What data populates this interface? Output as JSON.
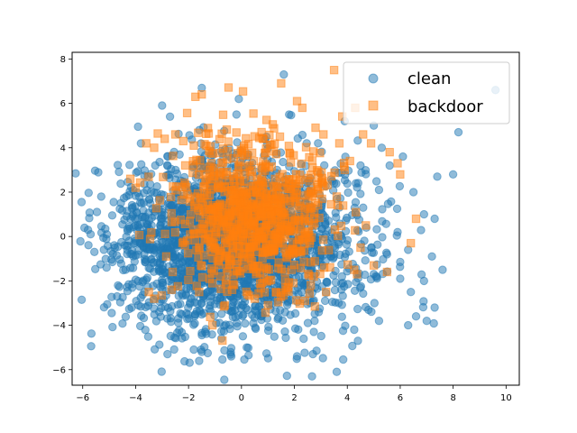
{
  "chart_data": {
    "type": "scatter",
    "title": "",
    "xlabel": "",
    "ylabel": "",
    "xlim": [
      -6.4,
      10.5
    ],
    "ylim": [
      -6.7,
      8.3
    ],
    "xticks": [
      -6,
      -4,
      -2,
      0,
      2,
      4,
      6,
      8,
      10
    ],
    "yticks": [
      -6,
      -4,
      -2,
      0,
      2,
      4,
      6,
      8
    ],
    "grid": false,
    "legend": "upper right",
    "series": [
      {
        "name": "clean",
        "marker": "circle",
        "color": "#1f77b4",
        "alpha": 0.5,
        "cluster": {
          "count": 2400,
          "center": [
            -0.3,
            -0.3
          ],
          "spread": [
            2.3,
            1.9
          ],
          "seed": 7
        },
        "points": [
          [
            -5.8,
            0.3
          ],
          [
            -5.7,
            0.1
          ],
          [
            -5.3,
            1.8
          ],
          [
            -5.2,
            -0.6
          ],
          [
            -5.1,
            -1.4
          ],
          [
            -4.7,
            -2.7
          ],
          [
            -3.8,
            4.2
          ],
          [
            -3.9,
            -3.1
          ],
          [
            -3.0,
            5.9
          ],
          [
            -2.7,
            5.4
          ],
          [
            -1.5,
            6.7
          ],
          [
            -1.8,
            -5.1
          ],
          [
            -1.5,
            -5.2
          ],
          [
            -0.1,
            6.2
          ],
          [
            0.2,
            -5.0
          ],
          [
            1.6,
            7.3
          ],
          [
            1.8,
            5.5
          ],
          [
            2.1,
            -5.4
          ],
          [
            2.7,
            -5.3
          ],
          [
            3.6,
            -6.1
          ],
          [
            3.9,
            5.2
          ],
          [
            4.4,
            -4.7
          ],
          [
            5.0,
            5.0
          ],
          [
            5.3,
            4.0
          ],
          [
            5.6,
            3.2
          ],
          [
            6.1,
            3.6
          ],
          [
            6.5,
            2.0
          ],
          [
            6.9,
            1.0
          ],
          [
            6.0,
            -1.9
          ],
          [
            6.4,
            -2.5
          ],
          [
            6.9,
            -2.0
          ],
          [
            7.3,
            -3.2
          ],
          [
            7.4,
            2.7
          ],
          [
            7.6,
            -1.5
          ],
          [
            7.3,
            0.8
          ],
          [
            7.2,
            -0.9
          ],
          [
            8.0,
            2.8
          ],
          [
            8.2,
            4.7
          ],
          [
            9.6,
            6.6
          ],
          [
            6.3,
            -4.0
          ],
          [
            6.6,
            -3.6
          ],
          [
            7.0,
            -3.8
          ],
          [
            5.2,
            -3.8
          ],
          [
            4.8,
            -3.3
          ],
          [
            5.9,
            0.2
          ],
          [
            6.3,
            -0.6
          ],
          [
            4.5,
            3.2
          ],
          [
            5.2,
            2.1
          ],
          [
            4.6,
            1.3
          ],
          [
            5.5,
            -0.8
          ]
        ]
      },
      {
        "name": "backdoor",
        "marker": "square",
        "color": "#ff7f0e",
        "alpha": 0.5,
        "cluster": {
          "count": 850,
          "center": [
            0.5,
            0.9
          ],
          "spread": [
            1.5,
            1.7
          ],
          "seed": 13
        },
        "points": [
          [
            -3.6,
            4.2
          ],
          [
            -3.3,
            4.0
          ],
          [
            -2.9,
            4.4
          ],
          [
            -2.5,
            4.6
          ],
          [
            -2.2,
            4.3
          ],
          [
            -1.8,
            4.1
          ],
          [
            -1.5,
            6.4
          ],
          [
            -4.2,
            2.6
          ],
          [
            -4.0,
            2.2
          ],
          [
            -3.5,
            -2.5
          ],
          [
            -3.3,
            -2.8
          ],
          [
            -1.1,
            -4.0
          ],
          [
            1.5,
            6.9
          ],
          [
            2.1,
            6.1
          ],
          [
            2.3,
            5.8
          ],
          [
            3.5,
            7.5
          ],
          [
            2.8,
            4.9
          ],
          [
            3.1,
            4.6
          ],
          [
            3.7,
            4.2
          ],
          [
            4.3,
            5.8
          ],
          [
            4.6,
            4.6
          ],
          [
            4.1,
            3.4
          ],
          [
            4.9,
            4.2
          ],
          [
            5.6,
            3.8
          ],
          [
            5.9,
            3.3
          ],
          [
            6.0,
            2.8
          ],
          [
            6.6,
            0.8
          ],
          [
            6.4,
            -0.3
          ],
          [
            4.7,
            0.5
          ],
          [
            4.5,
            -0.5
          ],
          [
            5.0,
            -1.3
          ],
          [
            5.5,
            -1.6
          ],
          [
            3.9,
            3.0
          ],
          [
            3.6,
            1.8
          ],
          [
            3.2,
            -2.5
          ],
          [
            2.4,
            -2.9
          ],
          [
            1.0,
            -3.1
          ],
          [
            0.5,
            -2.8
          ],
          [
            -1.6,
            -2.5
          ],
          [
            -2.6,
            -1.6
          ]
        ]
      }
    ]
  }
}
